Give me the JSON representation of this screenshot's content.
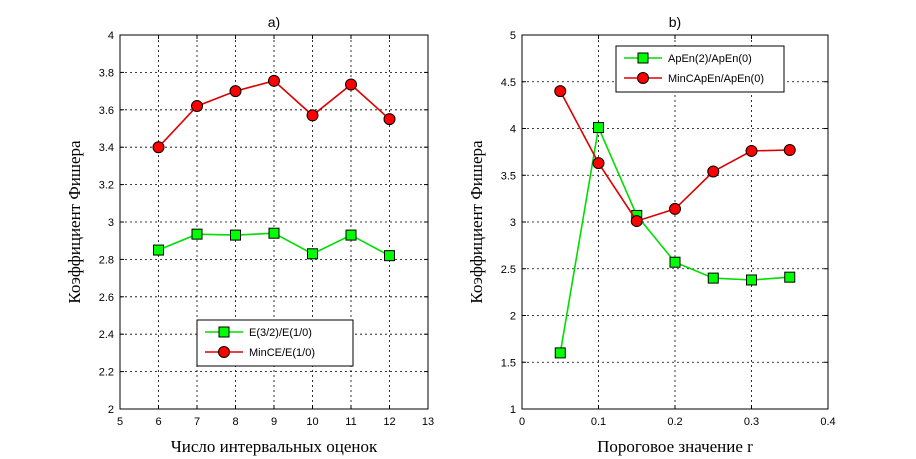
{
  "chart_data": [
    {
      "type": "line",
      "title": "a)",
      "xlabel": "Число интервальных оценок",
      "ylabel": "Коэффициент Фишера",
      "xlim": [
        5,
        13
      ],
      "ylim": [
        2,
        4
      ],
      "xticks": [
        5,
        6,
        7,
        8,
        9,
        10,
        11,
        12,
        13
      ],
      "yticks": [
        2,
        2.2,
        2.4,
        2.6,
        2.8,
        3,
        3.2,
        3.4,
        3.6,
        3.8,
        4
      ],
      "grid": true,
      "legend_position": "bottom-center",
      "x": [
        6,
        7,
        8,
        9,
        10,
        11,
        12
      ],
      "series": [
        {
          "name": "E(3/2)/E(1/0)",
          "marker": "square",
          "color": "#00ff00",
          "values": [
            2.85,
            2.935,
            2.93,
            2.94,
            2.83,
            2.93,
            2.82
          ]
        },
        {
          "name": "MinCE/E(1/0)",
          "marker": "circle",
          "color": "#ff0000",
          "values": [
            3.4,
            3.62,
            3.7,
            3.755,
            3.57,
            3.735,
            3.55
          ]
        }
      ]
    },
    {
      "type": "line",
      "title": "b)",
      "xlabel": "Пороговое значение r",
      "ylabel": "Коэффициент Фишера",
      "xlim": [
        0,
        0.4
      ],
      "ylim": [
        1,
        5
      ],
      "xticks": [
        0,
        0.1,
        0.2,
        0.3,
        0.4
      ],
      "yticks": [
        1,
        1.5,
        2,
        2.5,
        3,
        3.5,
        4,
        4.5,
        5
      ],
      "grid": true,
      "legend_position": "top-center",
      "x": [
        0.05,
        0.1,
        0.15,
        0.2,
        0.25,
        0.3,
        0.35
      ],
      "series": [
        {
          "name": "ApEn(2)/ApEn(0)",
          "marker": "square",
          "color": "#00ff00",
          "values": [
            1.6,
            4.01,
            3.07,
            2.57,
            2.4,
            2.38,
            2.41
          ]
        },
        {
          "name": "MinCApEn/ApEn(0)",
          "marker": "circle",
          "color": "#ff0000",
          "values": [
            4.4,
            3.63,
            3.01,
            3.14,
            3.54,
            3.76,
            3.77
          ]
        }
      ]
    }
  ]
}
